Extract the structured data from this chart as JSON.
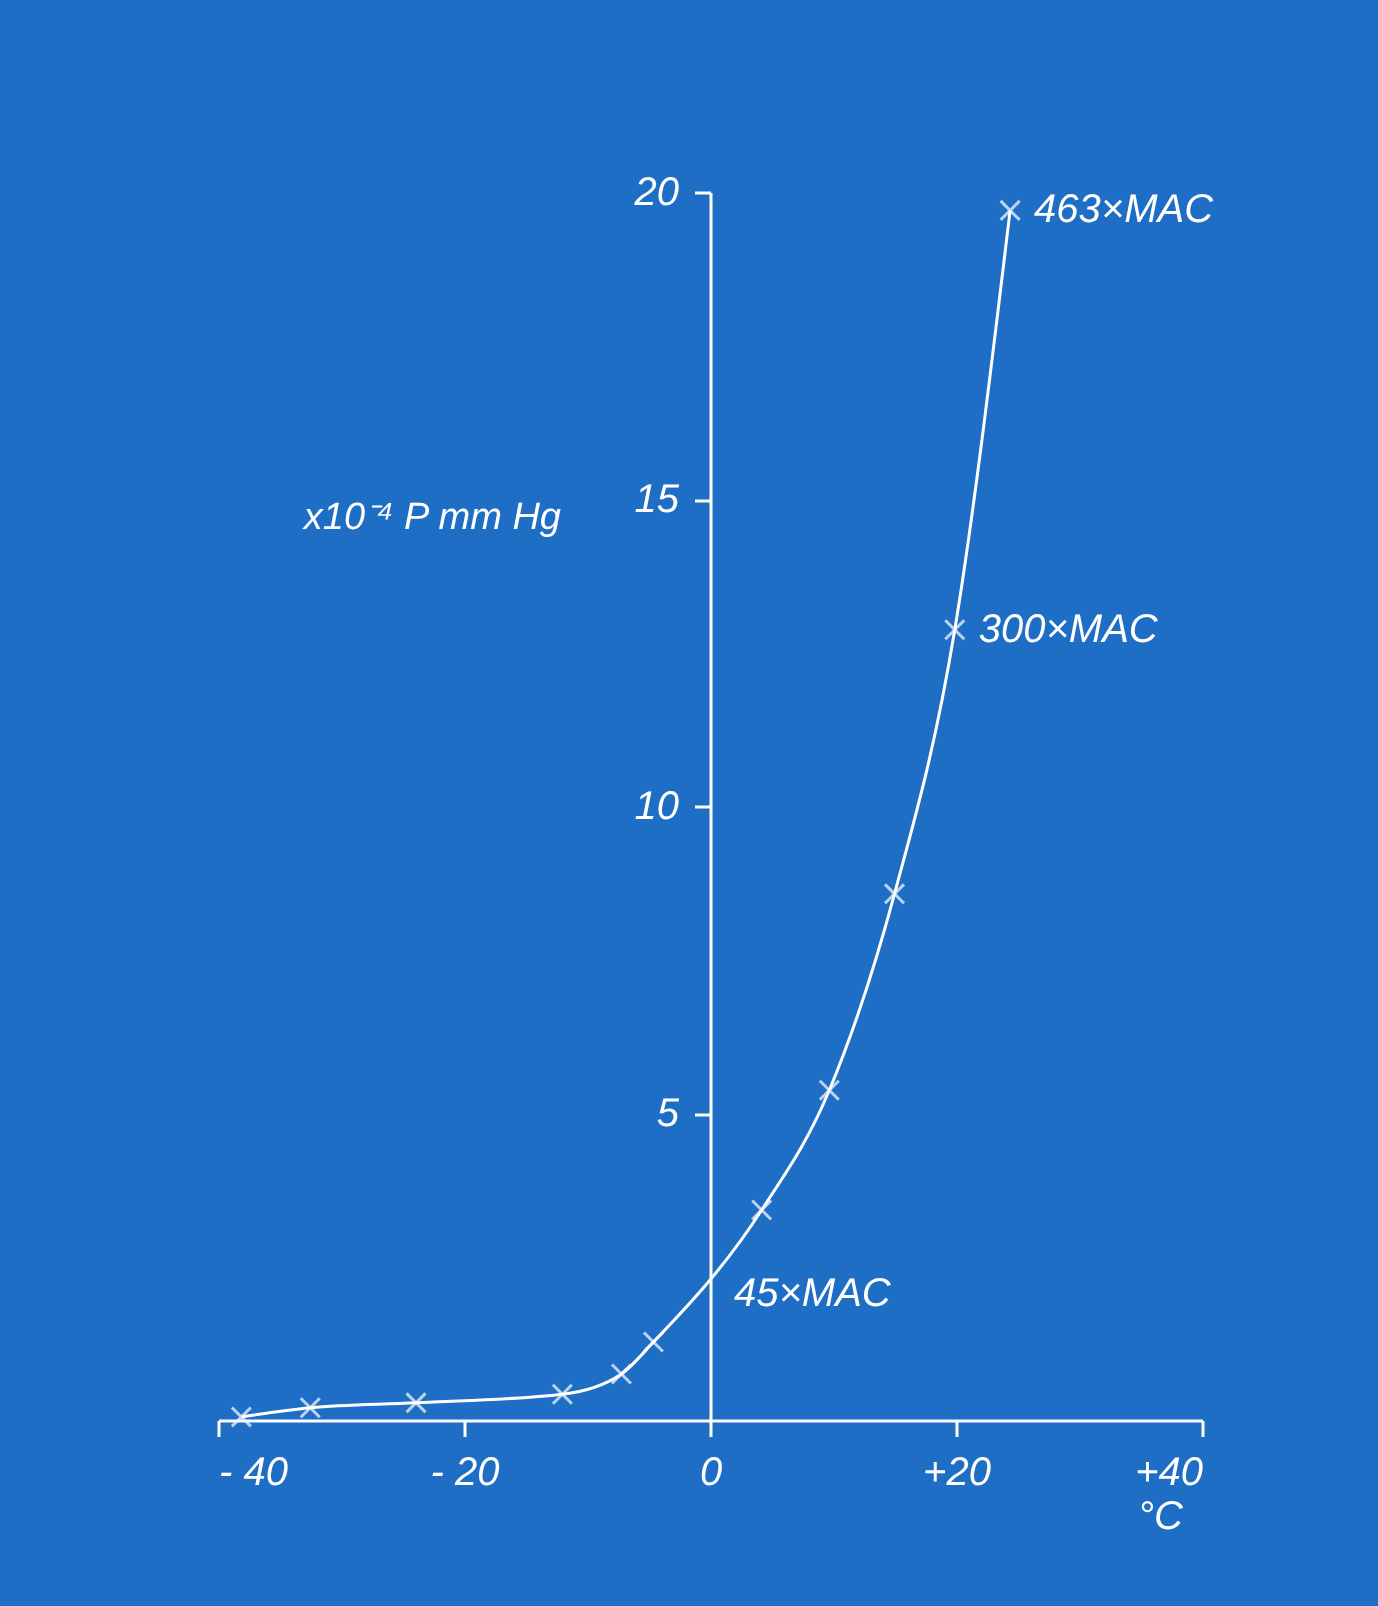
{
  "chart_data": {
    "type": "line",
    "xlabel": "°C",
    "ylabel": "x10⁻⁴ P mm Hg",
    "x": [
      -38.1,
      -32.5,
      -23.9,
      -12.0,
      -7.2,
      -4.6,
      4.2,
      9.7,
      15.0,
      19.9,
      24.4
    ],
    "series": [
      {
        "color": "#ffffff",
        "values": [
          0.05,
          0.2,
          0.28,
          0.42,
          0.75,
          1.27,
          3.42,
          5.37,
          8.57,
          12.87,
          19.7
        ]
      }
    ],
    "xlim": [
      -40,
      40
    ],
    "ylim": [
      0,
      20
    ],
    "xticks": [
      {
        "value": -40,
        "label": "- 40"
      },
      {
        "value": -20,
        "label": "- 20"
      },
      0,
      {
        "value": 20,
        "label": "+20"
      },
      {
        "value": 40,
        "label": "+40"
      }
    ],
    "yticks": [
      5,
      10,
      15,
      20
    ],
    "annotations": [
      {
        "text": "463×MAC",
        "x": 24.4,
        "y": 19.7
      },
      {
        "text": "300×MAC",
        "x": 19.9,
        "y": 12.87
      },
      {
        "text": "45×MAC",
        "x": 0,
        "y": 2.05
      }
    ],
    "marker": "cross",
    "line_style": "solid",
    "grid": false
  }
}
